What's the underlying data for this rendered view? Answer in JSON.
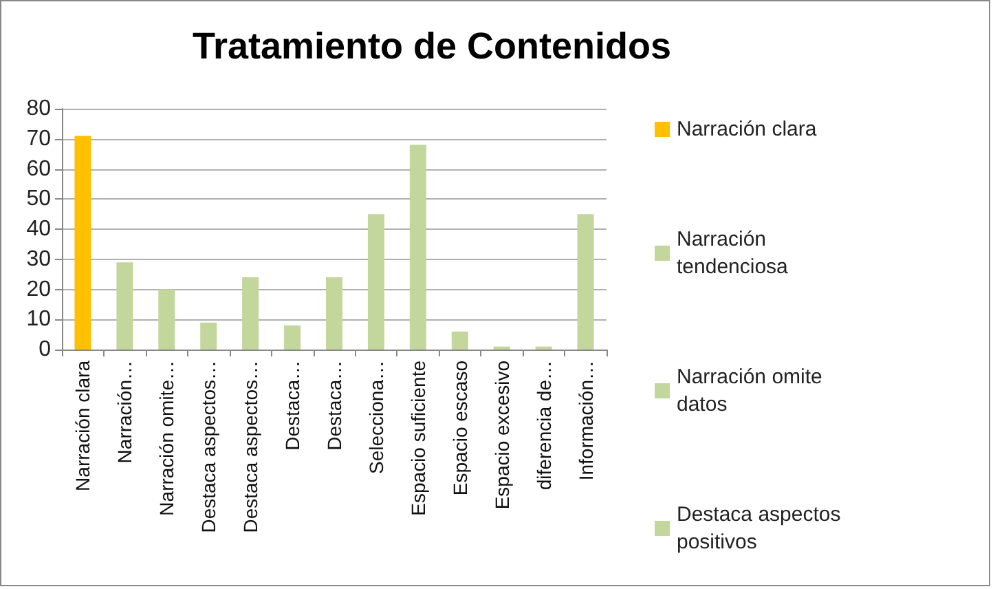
{
  "chart_data": {
    "type": "bar",
    "title": "Tratamiento de Contenidos",
    "categories": [
      "Narración clara",
      "Narración…",
      "Narración omite…",
      "Destaca aspectos…",
      "Destaca aspectos…",
      "Destaca…",
      "Destaca…",
      "Selecciona…",
      "Espacio suficiente",
      "Espacio escaso",
      "Espacio excesivo",
      "diferencia de…",
      "Información…"
    ],
    "stacked": true,
    "series": [
      {
        "name": "Narración clara",
        "color": "#ffc000",
        "values": [
          71,
          null,
          null,
          null,
          null,
          null,
          null,
          null,
          null,
          null,
          null,
          null,
          null
        ]
      },
      {
        "name": "Narración tendenciosa",
        "color": "#c3d69b",
        "values": [
          null,
          29,
          null,
          null,
          null,
          null,
          null,
          null,
          null,
          null,
          null,
          null,
          null
        ]
      },
      {
        "name": "Narración omite datos",
        "color": "#c3d69b",
        "values": [
          null,
          null,
          20,
          null,
          null,
          null,
          null,
          null,
          null,
          null,
          null,
          null,
          null
        ]
      },
      {
        "name": "Destaca aspectos positivos",
        "color": "#c3d69b",
        "values": [
          null,
          null,
          null,
          9,
          null,
          null,
          null,
          null,
          null,
          null,
          null,
          null,
          null
        ]
      },
      {
        "color": "#c3d69b",
        "values": [
          null,
          null,
          null,
          null,
          24,
          null,
          null,
          null,
          null,
          null,
          null,
          null,
          null
        ]
      },
      {
        "color": "#c3d69b",
        "values": [
          null,
          null,
          null,
          null,
          null,
          8,
          null,
          null,
          null,
          null,
          null,
          null,
          null
        ]
      },
      {
        "color": "#c3d69b",
        "values": [
          null,
          null,
          null,
          null,
          null,
          null,
          24,
          null,
          null,
          null,
          null,
          null,
          null
        ]
      },
      {
        "color": "#c3d69b",
        "values": [
          null,
          null,
          null,
          null,
          null,
          null,
          null,
          45,
          null,
          null,
          null,
          null,
          null
        ]
      },
      {
        "color": "#c3d69b",
        "values": [
          null,
          null,
          null,
          null,
          null,
          null,
          null,
          null,
          68,
          null,
          null,
          null,
          null
        ]
      },
      {
        "color": "#c3d69b",
        "values": [
          null,
          null,
          null,
          null,
          null,
          null,
          null,
          null,
          null,
          6,
          null,
          null,
          null
        ]
      },
      {
        "color": "#c3d69b",
        "values": [
          null,
          null,
          null,
          null,
          null,
          null,
          null,
          null,
          null,
          null,
          1,
          null,
          null
        ]
      },
      {
        "color": "#c3d69b",
        "values": [
          null,
          null,
          null,
          null,
          null,
          null,
          null,
          null,
          null,
          null,
          null,
          1,
          null
        ]
      },
      {
        "color": "#c3d69b",
        "values": [
          null,
          null,
          null,
          null,
          null,
          null,
          null,
          null,
          null,
          null,
          null,
          null,
          45
        ]
      }
    ],
    "ylim": [
      0,
      80
    ],
    "yticks": [
      0,
      10,
      20,
      30,
      40,
      50,
      60,
      70,
      80
    ],
    "grid": "y",
    "legend": "right"
  }
}
